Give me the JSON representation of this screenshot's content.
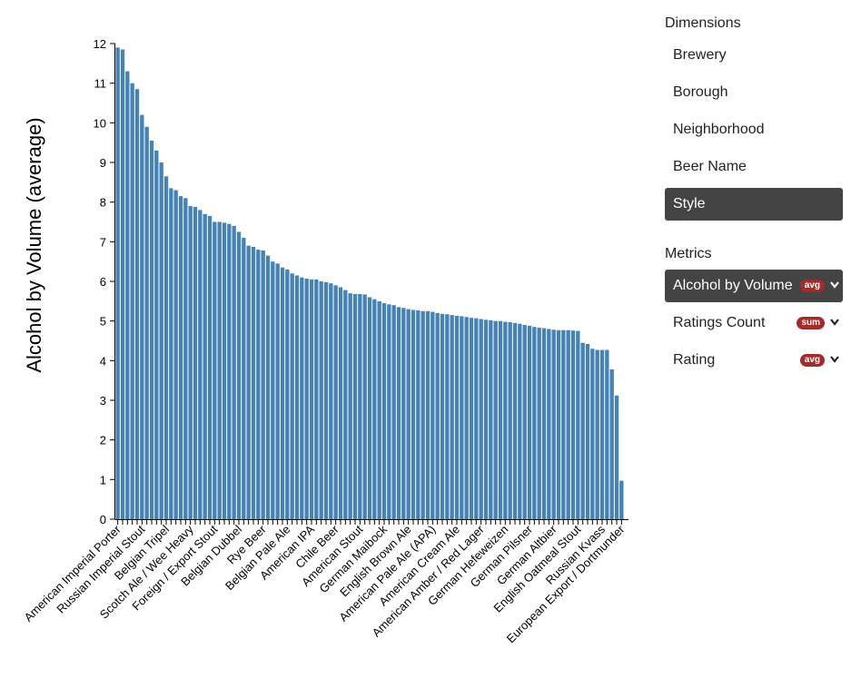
{
  "chart_data": {
    "type": "bar",
    "y_label": "Alcohol by Volume (average)",
    "color": "#4682b4",
    "categories": [
      "American Imperial Porter",
      null,
      null,
      null,
      null,
      "Russian Imperial Stout",
      null,
      null,
      null,
      null,
      "Belgian Tripel",
      null,
      null,
      null,
      null,
      "Scotch Ale / Wee Heavy",
      null,
      null,
      null,
      null,
      "Foreign / Export Stout",
      null,
      null,
      null,
      null,
      "Belgian Dubbel",
      null,
      null,
      null,
      null,
      "Rye Beer",
      null,
      null,
      null,
      null,
      "Belgian Pale Ale",
      null,
      null,
      null,
      null,
      "American IPA",
      null,
      null,
      null,
      null,
      "Chile Beer",
      null,
      null,
      null,
      null,
      "American Stout",
      null,
      null,
      null,
      null,
      "German Maibock",
      null,
      null,
      null,
      null,
      "English Brown Ale",
      null,
      null,
      null,
      null,
      "American Pale Ale (APA)",
      null,
      null,
      null,
      null,
      "American Cream Ale",
      null,
      null,
      null,
      null,
      "American Amber / Red Lager",
      null,
      null,
      null,
      null,
      "German Hefeweizen",
      null,
      null,
      null,
      null,
      "German Pilsner",
      null,
      null,
      null,
      null,
      "German Altbier",
      null,
      null,
      null,
      null,
      "English Oatmeal Stout",
      null,
      null,
      null,
      null,
      "Russian Kvass",
      null,
      null,
      null,
      "European Export / Dortmunder"
    ],
    "values": [
      11.9,
      11.85,
      11.3,
      11.0,
      10.85,
      10.2,
      9.9,
      9.55,
      9.3,
      9.0,
      8.65,
      8.35,
      8.3,
      8.15,
      8.1,
      7.9,
      7.88,
      7.8,
      7.7,
      7.65,
      7.5,
      7.5,
      7.48,
      7.45,
      7.4,
      7.25,
      7.1,
      6.9,
      6.87,
      6.8,
      6.78,
      6.65,
      6.5,
      6.45,
      6.35,
      6.3,
      6.2,
      6.15,
      6.1,
      6.07,
      6.05,
      6.05,
      6.0,
      5.98,
      5.95,
      5.9,
      5.85,
      5.78,
      5.7,
      5.68,
      5.68,
      5.67,
      5.6,
      5.55,
      5.5,
      5.45,
      5.42,
      5.4,
      5.35,
      5.33,
      5.3,
      5.28,
      5.27,
      5.25,
      5.25,
      5.23,
      5.2,
      5.18,
      5.17,
      5.15,
      5.13,
      5.12,
      5.1,
      5.08,
      5.07,
      5.05,
      5.03,
      5.02,
      5.0,
      5.0,
      4.98,
      4.97,
      4.95,
      4.93,
      4.9,
      4.88,
      4.85,
      4.83,
      4.82,
      4.8,
      4.78,
      4.77,
      4.77,
      4.77,
      4.76,
      4.75,
      4.45,
      4.42,
      4.3,
      4.27,
      4.27,
      4.27,
      3.78,
      3.12,
      0.97
    ],
    "ylim": [
      0,
      12
    ],
    "yticks": [
      0,
      1,
      2,
      3,
      4,
      5,
      6,
      7,
      8,
      9,
      10,
      11,
      12
    ]
  },
  "sidebar": {
    "dimensions_title": "Dimensions",
    "dimensions": [
      "Brewery",
      "Borough",
      "Neighborhood",
      "Beer Name",
      "Style"
    ],
    "selected_dimension": "Style",
    "metrics_title": "Metrics",
    "metrics": [
      {
        "name": "Alcohol by Volume",
        "agg": "avg"
      },
      {
        "name": "Ratings Count",
        "agg": "sum"
      },
      {
        "name": "Rating",
        "agg": "avg"
      }
    ],
    "selected_metric": "Alcohol by Volume"
  }
}
